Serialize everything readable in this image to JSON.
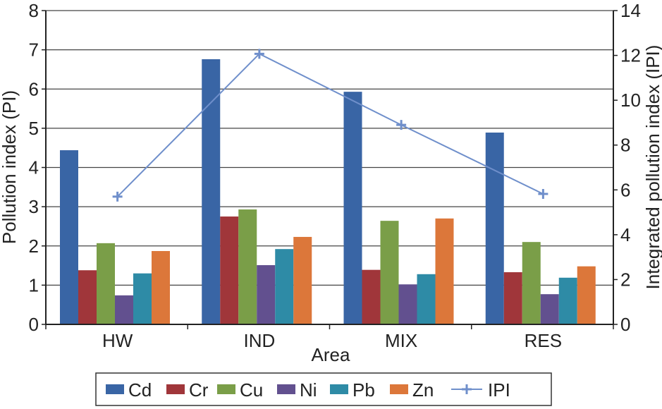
{
  "chart_data": {
    "type": "bar",
    "title": "",
    "xlabel": "Area",
    "ylabel": "Pollution index (PI)",
    "y2label": "Integrated pollution index (IPI)",
    "categories": [
      "HW",
      "IND",
      "MIX",
      "RES"
    ],
    "ylim": [
      0,
      8
    ],
    "yticks": [
      0,
      1,
      2,
      3,
      4,
      5,
      6,
      7,
      8
    ],
    "y2lim": [
      0,
      14
    ],
    "y2ticks": [
      0,
      2,
      4,
      6,
      8,
      10,
      12,
      14
    ],
    "grid": true,
    "legend_position": "bottom",
    "series": [
      {
        "name": "Cd",
        "color": "#3965a5",
        "values": [
          4.44,
          6.76,
          5.93,
          4.89
        ]
      },
      {
        "name": "Cr",
        "color": "#a0363a",
        "values": [
          1.38,
          2.75,
          1.39,
          1.33
        ]
      },
      {
        "name": "Cu",
        "color": "#7a9e48",
        "values": [
          2.07,
          2.93,
          2.64,
          2.1
        ]
      },
      {
        "name": "Ni",
        "color": "#62508f",
        "values": [
          0.74,
          1.51,
          1.02,
          0.77
        ]
      },
      {
        "name": "Pb",
        "color": "#2e8ba6",
        "values": [
          1.3,
          1.92,
          1.28,
          1.19
        ]
      },
      {
        "name": "Zn",
        "color": "#dc773a",
        "values": [
          1.87,
          2.23,
          2.7,
          1.48
        ]
      }
    ],
    "line_series": {
      "name": "IPI",
      "color": "#6f8fcb",
      "axis": "right",
      "type": "line",
      "marker": "plus",
      "values": [
        5.7,
        12.07,
        8.9,
        5.82
      ]
    }
  }
}
